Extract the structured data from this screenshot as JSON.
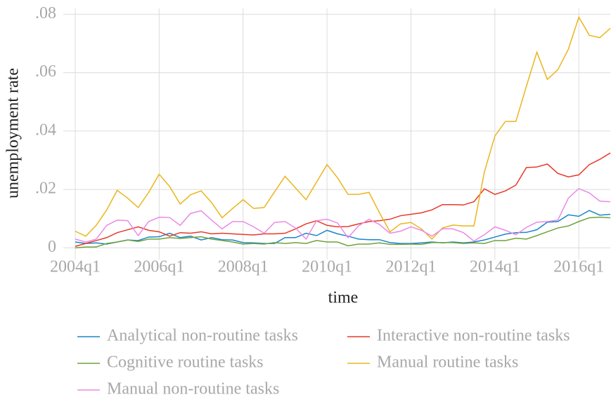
{
  "chart_data": {
    "type": "line",
    "xlabel": "time",
    "ylabel": "unemployment rate",
    "x": [
      2004,
      2004.25,
      2004.5,
      2004.75,
      2005,
      2005.25,
      2005.5,
      2005.75,
      2006,
      2006.25,
      2006.5,
      2006.75,
      2007,
      2007.25,
      2007.5,
      2007.75,
      2008,
      2008.25,
      2008.5,
      2008.75,
      2009,
      2009.25,
      2009.5,
      2009.75,
      2010,
      2010.25,
      2010.5,
      2010.75,
      2011,
      2011.25,
      2011.5,
      2011.75,
      2012,
      2012.25,
      2012.5,
      2012.75,
      2013,
      2013.25,
      2013.5,
      2013.75,
      2014,
      2014.25,
      2014.5,
      2014.75,
      2015,
      2015.25,
      2015.5,
      2015.75,
      2016,
      2016.25,
      2016.5,
      2016.75
    ],
    "xlim": [
      2004,
      2016.75
    ],
    "xticks": [
      {
        "value": 2004,
        "label": "2004q1"
      },
      {
        "value": 2006,
        "label": "2006q1"
      },
      {
        "value": 2008,
        "label": "2008q1"
      },
      {
        "value": 2010,
        "label": "2010q1"
      },
      {
        "value": 2012,
        "label": "2012q1"
      },
      {
        "value": 2014,
        "label": "2014q1"
      },
      {
        "value": 2016,
        "label": "2016q1"
      }
    ],
    "ylim": [
      -0.004,
      0.082
    ],
    "yticks": [
      0,
      {
        "value": 0.02,
        "label": ".02"
      },
      {
        "value": 0.04,
        "label": ".04"
      },
      {
        "value": 0.06,
        "label": ".06"
      },
      {
        "value": 0.08,
        "label": ".08"
      }
    ],
    "grid": true,
    "series": [
      {
        "name": "Analytical non-routine tasks",
        "color": "#1a86c9",
        "values": [
          0.002,
          0.0015,
          0.0017,
          0.0013,
          0.002,
          0.0027,
          0.0025,
          0.0037,
          0.0038,
          0.005,
          0.0035,
          0.004,
          0.0027,
          0.0035,
          0.0028,
          0.0027,
          0.0018,
          0.0017,
          0.0015,
          0.0015,
          0.0035,
          0.0035,
          0.005,
          0.0042,
          0.006,
          0.0048,
          0.004,
          0.003,
          0.0028,
          0.0028,
          0.0018,
          0.0015,
          0.0015,
          0.0017,
          0.002,
          0.0017,
          0.002,
          0.0017,
          0.002,
          0.0027,
          0.0037,
          0.0047,
          0.0052,
          0.0053,
          0.0062,
          0.0088,
          0.009,
          0.0113,
          0.0108,
          0.0128,
          0.0112,
          0.0115
        ]
      },
      {
        "name": "Interactive non-routine tasks",
        "color": "#e8392a",
        "values": [
          0.0005,
          0.0015,
          0.0025,
          0.0035,
          0.0052,
          0.0062,
          0.0072,
          0.006,
          0.0055,
          0.004,
          0.0052,
          0.005,
          0.0055,
          0.0048,
          0.005,
          0.0048,
          0.0046,
          0.0044,
          0.0048,
          0.0048,
          0.005,
          0.0065,
          0.0082,
          0.0093,
          0.0077,
          0.0072,
          0.0073,
          0.0082,
          0.009,
          0.0093,
          0.0098,
          0.011,
          0.0115,
          0.012,
          0.013,
          0.0148,
          0.0148,
          0.0147,
          0.0158,
          0.0202,
          0.0183,
          0.0195,
          0.0215,
          0.0275,
          0.0277,
          0.0287,
          0.0255,
          0.0243,
          0.025,
          0.0285,
          0.0303,
          0.0325
        ]
      },
      {
        "name": "Cognitive routine tasks",
        "color": "#6fa23a",
        "values": [
          0,
          0.0003,
          0.0003,
          0.0015,
          0.002,
          0.0027,
          0.0022,
          0.003,
          0.003,
          0.0035,
          0.0032,
          0.0035,
          0.0038,
          0.003,
          0.0025,
          0.002,
          0.0013,
          0.0015,
          0.0013,
          0.0018,
          0.0015,
          0.0018,
          0.0015,
          0.0025,
          0.002,
          0.002,
          0.0007,
          0.0013,
          0.0013,
          0.0017,
          0.0012,
          0.0012,
          0.0013,
          0.0012,
          0.0018,
          0.0018,
          0.0018,
          0.0015,
          0.0017,
          0.0015,
          0.0025,
          0.0025,
          0.0033,
          0.003,
          0.0042,
          0.0055,
          0.0068,
          0.0075,
          0.009,
          0.0103,
          0.0105,
          0.0103
        ]
      },
      {
        "name": "Manual routine tasks",
        "color": "#ebb51e",
        "values": [
          0.0057,
          0.004,
          0.0077,
          0.013,
          0.0197,
          0.017,
          0.0138,
          0.019,
          0.0252,
          0.021,
          0.015,
          0.0182,
          0.0195,
          0.0155,
          0.0103,
          0.0135,
          0.0165,
          0.0135,
          0.0138,
          0.0192,
          0.0245,
          0.0205,
          0.0165,
          0.0225,
          0.0285,
          0.024,
          0.0183,
          0.0183,
          0.019,
          0.012,
          0.0055,
          0.0082,
          0.0087,
          0.0065,
          0.003,
          0.0068,
          0.0078,
          0.0075,
          0.0075,
          0.026,
          0.0383,
          0.0433,
          0.0433,
          0.0553,
          0.067,
          0.0577,
          0.061,
          0.068,
          0.079,
          0.0728,
          0.072,
          0.0752
        ]
      },
      {
        "name": "Manual non-routine tasks",
        "color": "#ea8ae6",
        "values": [
          0.003,
          0.002,
          0.003,
          0.0077,
          0.0095,
          0.0093,
          0.0042,
          0.009,
          0.0105,
          0.0104,
          0.0077,
          0.0118,
          0.0127,
          0.0095,
          0.0065,
          0.009,
          0.009,
          0.0072,
          0.005,
          0.0087,
          0.009,
          0.0068,
          0.003,
          0.0093,
          0.0098,
          0.0085,
          0.0035,
          0.0075,
          0.0098,
          0.008,
          0.005,
          0.0057,
          0.0072,
          0.006,
          0.004,
          0.0065,
          0.0065,
          0.0052,
          0.0023,
          0.0045,
          0.0072,
          0.006,
          0.0045,
          0.007,
          0.0088,
          0.009,
          0.0095,
          0.017,
          0.0203,
          0.0188,
          0.016,
          0.0158
        ]
      }
    ]
  }
}
